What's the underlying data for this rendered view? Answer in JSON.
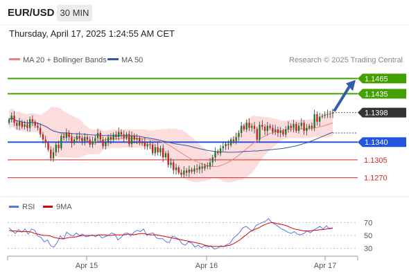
{
  "header": {
    "pair": "EUR/USD",
    "timeframe": "30 MIN",
    "datetime": "Thursday, April 17, 2025 1:24:55 AM CET"
  },
  "legend": {
    "ma20_label": "MA 20 + Bollinger Bands",
    "ma50_label": "MA 50",
    "ma20_color": "#f08080",
    "ma50_color": "#3355aa",
    "copyright": "Research © 2025 Trading Central"
  },
  "rsi_legend": {
    "rsi_label": "RSI",
    "ma9_label": "9MA",
    "rsi_color": "#5577dd",
    "ma9_color": "#dd0000"
  },
  "chart_data": [
    {
      "type": "candlestick",
      "title": "",
      "ylim": [
        1.1245,
        1.149
      ],
      "levels": [
        {
          "value": "1.1465",
          "style": "resistance-target",
          "color": "#44a000"
        },
        {
          "value": "1.1435",
          "style": "resistance",
          "color": "#44a000"
        },
        {
          "value": "1.1398",
          "style": "last-price",
          "color": "#333333"
        },
        {
          "value": "1.1340",
          "style": "pivot",
          "color": "#2255dd"
        },
        {
          "value": "1.1305",
          "style": "support",
          "color": "#dd2222"
        },
        {
          "value": "1.1270",
          "style": "support",
          "color": "#dd2222"
        }
      ],
      "x_ticks": [
        "Apr 15",
        "Apr 16",
        "Apr 17"
      ],
      "close": [
        1.1384,
        1.1392,
        1.1378,
        1.1372,
        1.138,
        1.137,
        1.1375,
        1.1368,
        1.1385,
        1.138,
        1.1372,
        1.1368,
        1.1355,
        1.1345,
        1.1338,
        1.1325,
        1.1308,
        1.132,
        1.1335,
        1.1328,
        1.1352,
        1.1348,
        1.1358,
        1.135,
        1.1338,
        1.1345,
        1.1352,
        1.1348,
        1.1342,
        1.135,
        1.1345,
        1.1335,
        1.1342,
        1.1348,
        1.1358,
        1.1345,
        1.1332,
        1.134,
        1.135,
        1.1345,
        1.1355,
        1.135,
        1.136,
        1.1355,
        1.1348,
        1.1356,
        1.1336,
        1.1352,
        1.1345,
        1.1348,
        1.1338,
        1.134,
        1.1332,
        1.1336,
        1.1335,
        1.1318,
        1.133,
        1.132,
        1.1328,
        1.131,
        1.1318,
        1.1295,
        1.13,
        1.1285,
        1.129,
        1.128,
        1.1276,
        1.1284,
        1.128,
        1.1286,
        1.1282,
        1.1288,
        1.1286,
        1.1292,
        1.1288,
        1.1294,
        1.1292,
        1.13,
        1.131,
        1.1322,
        1.1318,
        1.1328,
        1.1332,
        1.1336,
        1.1334,
        1.1345,
        1.1342,
        1.135,
        1.1358,
        1.1372,
        1.1365,
        1.1378,
        1.1368,
        1.1372,
        1.1366,
        1.1345,
        1.1374,
        1.137,
        1.1362,
        1.1372,
        1.1368,
        1.136,
        1.1365,
        1.1358,
        1.1362,
        1.1355,
        1.1365,
        1.1372,
        1.1368,
        1.1376,
        1.1362,
        1.1372,
        1.1378,
        1.1362,
        1.1368,
        1.1372,
        1.1368,
        1.1395,
        1.138,
        1.139,
        1.1392,
        1.1394,
        1.1395,
        1.1396,
        1.1398
      ]
    },
    {
      "type": "line",
      "title": "",
      "ylim": [
        20,
        80
      ],
      "y_ticks": [
        "70",
        "50",
        "30"
      ],
      "series": [
        {
          "name": "RSI",
          "values": [
            62,
            57,
            53,
            59,
            55,
            60,
            52,
            60,
            58,
            49,
            47,
            40,
            43,
            34,
            32,
            39,
            49,
            44,
            55,
            51,
            49,
            54,
            50,
            52,
            48,
            49,
            51,
            48,
            51,
            46,
            48,
            50,
            54,
            52,
            43,
            47,
            53,
            54,
            49,
            55,
            58,
            56,
            60,
            50,
            53,
            54,
            46,
            45,
            45,
            40,
            39,
            49,
            47,
            44,
            37,
            35,
            40,
            38,
            32,
            35,
            31,
            34,
            32,
            34,
            29,
            30,
            34,
            33,
            36,
            38,
            46,
            50,
            55,
            62,
            64,
            60,
            57,
            65,
            68,
            70,
            72,
            76,
            70,
            67,
            64,
            60,
            58,
            55,
            53,
            56,
            52,
            51,
            53,
            57,
            54,
            58,
            61,
            64,
            60,
            65,
            60,
            62
          ]
        },
        {
          "name": "9MA",
          "values": [
            58,
            57,
            57,
            56,
            56,
            56,
            56,
            55,
            53,
            52,
            51,
            50,
            50,
            49,
            47,
            46,
            45,
            45,
            46,
            47,
            47,
            48,
            49,
            50,
            50,
            50,
            50,
            50,
            51,
            51,
            51,
            50,
            50,
            51,
            51,
            51,
            51,
            52,
            52,
            51,
            52,
            53,
            53,
            52,
            51,
            51,
            51,
            50,
            49,
            48,
            47,
            46,
            45,
            44,
            43,
            42,
            41,
            40,
            39,
            38,
            37,
            35,
            34,
            33,
            33,
            33,
            33,
            33,
            34,
            35,
            37,
            40,
            43,
            47,
            51,
            55,
            58,
            60,
            62,
            65,
            67,
            69,
            70,
            69,
            68,
            67,
            66,
            64,
            62,
            60,
            59,
            58,
            57,
            57,
            57,
            58,
            58,
            59,
            59,
            60,
            61,
            61
          ]
        }
      ]
    }
  ]
}
